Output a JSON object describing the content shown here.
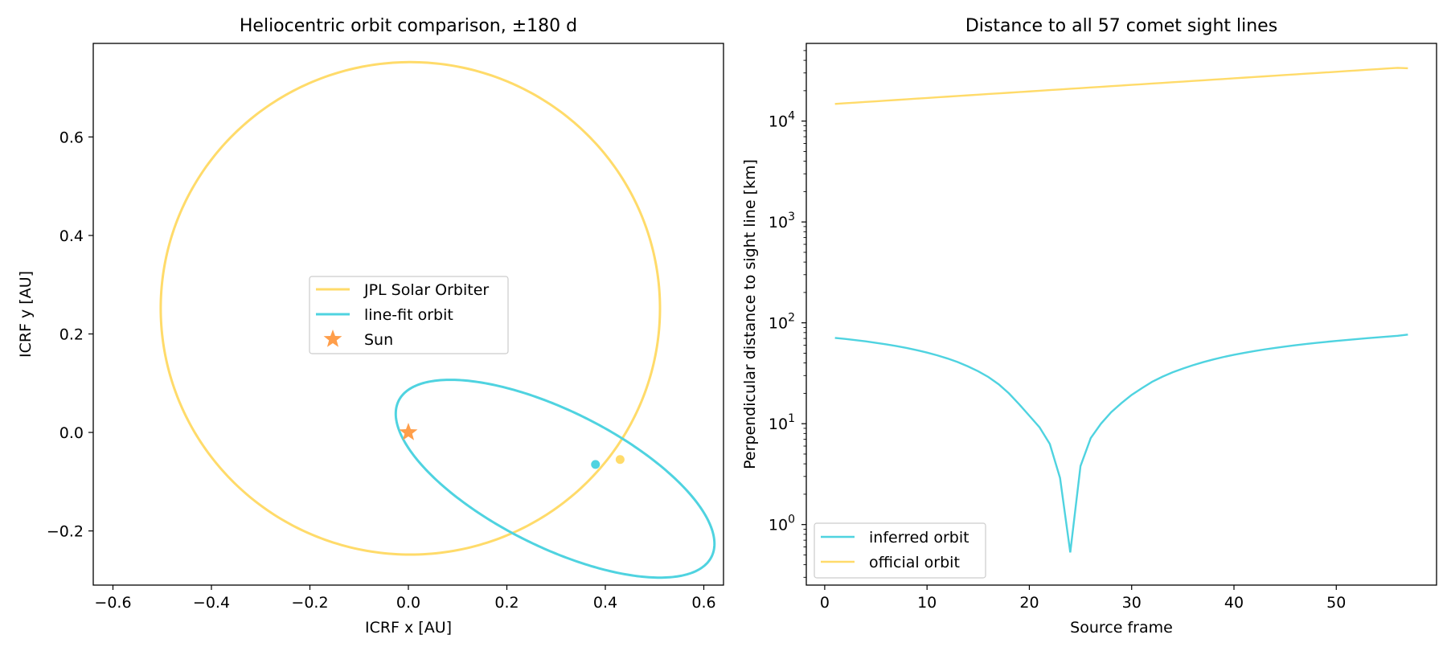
{
  "chart_data": [
    {
      "type": "line",
      "title": "Heliocentric orbit comparison, ±180 d",
      "xlabel": "ICRF x [AU]",
      "ylabel": "ICRF y [AU]",
      "xlim": [
        -0.64,
        0.64
      ],
      "ylim": [
        -0.31,
        0.79
      ],
      "xticks": [
        -0.6,
        -0.4,
        -0.2,
        0.0,
        0.2,
        0.4,
        0.6
      ],
      "xtick_labels": [
        "−0.6",
        "−0.4",
        "−0.2",
        "0.0",
        "0.2",
        "0.4",
        "0.6"
      ],
      "yticks": [
        -0.2,
        0.0,
        0.2,
        0.4,
        0.6
      ],
      "ytick_labels": [
        "−0.2",
        "0.0",
        "0.2",
        "0.4",
        "0.6"
      ],
      "grid": false,
      "legend_position": "center",
      "series": [
        {
          "name": "JPL Solar Orbiter",
          "color": "#FFDB6A",
          "kind": "orbit",
          "ellipse": {
            "center": [
              0.004,
              0.252
            ],
            "semi_axes": [
              0.507,
              0.5
            ],
            "angle_deg": 0
          },
          "marker": [
            0.43,
            -0.055
          ]
        },
        {
          "name": "line-fit orbit",
          "color": "#4FD3E0",
          "kind": "orbit",
          "ellipse": {
            "center": [
              0.298,
              -0.094
            ],
            "semi_axes": [
              0.355,
              0.138
            ],
            "angle_deg": -26.5
          },
          "marker": [
            0.38,
            -0.065
          ]
        },
        {
          "name": "Sun",
          "color": "#FF9E4A",
          "kind": "star",
          "point": [
            0.0,
            0.0
          ]
        }
      ]
    },
    {
      "type": "line",
      "title": "Distance to all 57 comet sight lines",
      "xlabel": "Source frame",
      "ylabel": "Perpendicular distance to sight line [km]",
      "xlim": [
        -1.8,
        59.8
      ],
      "ylim_log10": [
        -0.6,
        4.77
      ],
      "yscale": "log",
      "xticks": [
        0,
        10,
        20,
        30,
        40,
        50
      ],
      "xtick_labels": [
        "0",
        "10",
        "20",
        "30",
        "40",
        "50"
      ],
      "yticks_exp": [
        0,
        1,
        2,
        3,
        4
      ],
      "ytick_base": "10",
      "grid": false,
      "legend_position": "lower left",
      "x": [
        1,
        2,
        3,
        4,
        5,
        6,
        7,
        8,
        9,
        10,
        11,
        12,
        13,
        14,
        15,
        16,
        17,
        18,
        19,
        20,
        21,
        22,
        23,
        24,
        25,
        26,
        27,
        28,
        29,
        30,
        31,
        32,
        33,
        34,
        35,
        36,
        37,
        38,
        39,
        40,
        41,
        42,
        43,
        44,
        45,
        46,
        47,
        48,
        49,
        50,
        51,
        52,
        53,
        54,
        55,
        56,
        57
      ],
      "series": [
        {
          "name": "inferred orbit",
          "color": "#4FD3E0",
          "values": [
            70.8,
            69.2,
            67.4,
            65.5,
            63.4,
            61.2,
            58.8,
            56.3,
            53.6,
            50.7,
            47.6,
            44.3,
            40.8,
            37.0,
            33.1,
            29.0,
            24.6,
            20.0,
            15.6,
            12.0,
            9.2,
            6.3,
            2.9,
            0.53,
            3.8,
            7.2,
            10.0,
            13.0,
            16.0,
            19.3,
            22.5,
            26.0,
            29.2,
            32.3,
            35.2,
            38.0,
            40.8,
            43.4,
            45.9,
            48.2,
            50.4,
            52.5,
            54.5,
            56.4,
            58.2,
            59.9,
            61.6,
            63.2,
            64.7,
            66.2,
            67.6,
            69.0,
            70.4,
            71.7,
            73.0,
            74.3,
            76.5
          ]
        },
        {
          "name": "official orbit",
          "color": "#FFDB6A",
          "values": [
            14800,
            15020,
            15250,
            15480,
            15710,
            15950,
            16190,
            16440,
            16690,
            16940,
            17200,
            17460,
            17720,
            17990,
            18260,
            18540,
            18820,
            19100,
            19390,
            19680,
            19980,
            20280,
            20590,
            20900,
            21210,
            21530,
            21860,
            22190,
            22520,
            22860,
            23200,
            23550,
            23900,
            24260,
            24630,
            25000,
            25370,
            25750,
            26140,
            26540,
            26940,
            27340,
            27750,
            28170,
            28600,
            29030,
            29470,
            29910,
            30360,
            30820,
            31280,
            31750,
            32230,
            32720,
            33210,
            33710,
            33400
          ]
        }
      ]
    }
  ]
}
